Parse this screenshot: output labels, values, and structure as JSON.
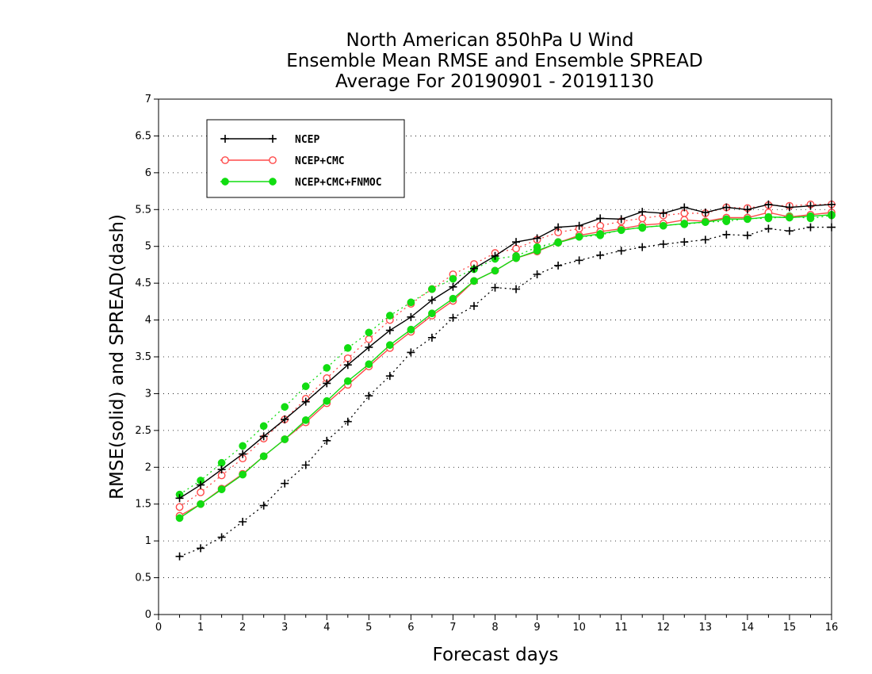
{
  "chart_data": {
    "type": "line",
    "title": [
      "North American 850hPa U Wind",
      "Ensemble Mean RMSE and Ensemble SPREAD",
      "Average For 20190901 - 20191130"
    ],
    "xlabel": "Forecast days",
    "ylabel": "RMSE(solid) and SPREAD(dash)",
    "xlim": [
      0,
      16
    ],
    "ylim": [
      0,
      7
    ],
    "xticks": [
      "0",
      "1",
      "2",
      "3",
      "4",
      "5",
      "6",
      "7",
      "8",
      "9",
      "10",
      "11",
      "12",
      "13",
      "14",
      "15",
      "16"
    ],
    "yticks": [
      "0",
      "0.5",
      "1",
      "1.5",
      "2",
      "2.5",
      "3",
      "3.5",
      "4",
      "4.5",
      "5",
      "5.5",
      "6",
      "6.5",
      "7"
    ],
    "grid": "horizontal dotted",
    "legend_position": "top-left",
    "x": [
      0.5,
      1,
      1.5,
      2,
      2.5,
      3,
      3.5,
      4,
      4.5,
      5,
      5.5,
      6,
      6.5,
      7,
      7.5,
      8,
      8.5,
      9,
      9.5,
      10,
      10.5,
      11,
      11.5,
      12,
      12.5,
      13,
      13.5,
      14,
      14.5,
      15,
      15.5,
      16
    ],
    "series": [
      {
        "name": "NCEP",
        "color": "#000000",
        "marker": "plus",
        "rmse": [
          1.58,
          1.76,
          1.97,
          2.18,
          2.42,
          2.65,
          2.89,
          3.14,
          3.39,
          3.63,
          3.86,
          4.04,
          4.27,
          4.45,
          4.7,
          4.87,
          5.06,
          5.11,
          5.26,
          5.28,
          5.38,
          5.37,
          5.47,
          5.45,
          5.53,
          5.46,
          5.53,
          5.5,
          5.57,
          5.53,
          5.55,
          5.57
        ],
        "spread": [
          0.79,
          0.9,
          1.05,
          1.26,
          1.48,
          1.78,
          2.03,
          2.36,
          2.62,
          2.97,
          3.24,
          3.56,
          3.76,
          4.03,
          4.19,
          4.44,
          4.42,
          4.62,
          4.74,
          4.81,
          4.88,
          4.94,
          4.99,
          5.03,
          5.06,
          5.09,
          5.16,
          5.15,
          5.24,
          5.21,
          5.26,
          5.26
        ]
      },
      {
        "name": "NCEP+CMC",
        "color": "#ff4a4a",
        "marker": "open-circle",
        "rmse": [
          1.34,
          1.5,
          1.71,
          1.91,
          2.15,
          2.38,
          2.61,
          2.87,
          3.12,
          3.37,
          3.62,
          3.84,
          4.06,
          4.26,
          4.53,
          4.67,
          4.84,
          4.93,
          5.05,
          5.15,
          5.2,
          5.24,
          5.29,
          5.31,
          5.36,
          5.34,
          5.39,
          5.39,
          5.46,
          5.4,
          5.43,
          5.46
        ],
        "spread": [
          1.46,
          1.66,
          1.89,
          2.12,
          2.39,
          2.65,
          2.93,
          3.21,
          3.48,
          3.74,
          4.0,
          4.22,
          4.42,
          4.62,
          4.76,
          4.91,
          4.97,
          5.09,
          5.19,
          5.24,
          5.28,
          5.34,
          5.38,
          5.42,
          5.45,
          5.45,
          5.53,
          5.52,
          5.56,
          5.55,
          5.57,
          5.57
        ]
      },
      {
        "name": "NCEP+CMC+FNMOC",
        "color": "#11dd11",
        "marker": "filled-circle",
        "rmse": [
          1.31,
          1.5,
          1.7,
          1.9,
          2.15,
          2.38,
          2.64,
          2.9,
          3.17,
          3.4,
          3.66,
          3.87,
          4.09,
          4.29,
          4.53,
          4.67,
          4.84,
          4.94,
          5.05,
          5.13,
          5.17,
          5.22,
          5.26,
          5.28,
          5.31,
          5.33,
          5.37,
          5.37,
          5.4,
          5.39,
          5.41,
          5.43
        ],
        "spread": [
          1.63,
          1.82,
          2.06,
          2.29,
          2.56,
          2.82,
          3.1,
          3.35,
          3.62,
          3.83,
          4.06,
          4.24,
          4.42,
          4.56,
          4.69,
          4.83,
          4.87,
          4.99,
          5.06,
          5.13,
          5.15,
          5.23,
          5.25,
          5.29,
          5.3,
          5.33,
          5.34,
          5.38,
          5.38,
          5.41,
          5.38,
          5.42
        ]
      }
    ]
  }
}
